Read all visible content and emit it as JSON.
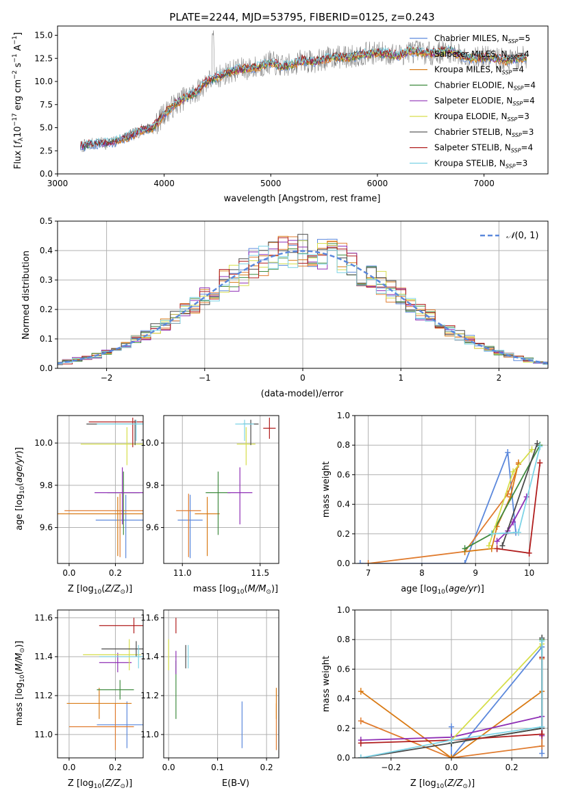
{
  "colors": {
    "series": [
      "#5b88dc",
      "#e07b2e",
      "#d97a14",
      "#3f8a3f",
      "#8e2eb5",
      "#d6de4a",
      "#4a4a4a",
      "#b01c1c",
      "#7cd3e6"
    ],
    "normal_curve": "#5b88dc",
    "grid": "#b0b0b0"
  },
  "chart_data": [
    {
      "id": "spectrum",
      "type": "line",
      "title": "PLATE=2244, MJD=53795, FIBERID=0125, z=0.243",
      "xlabel": "wavelength [Angstrom, rest frame]",
      "ylabel": "Flux [f_λ 10^-17 erg cm^-2 s^-1 A^-1]",
      "xlim": [
        3000,
        7600
      ],
      "ylim": [
        0,
        16
      ],
      "xticks": [
        "3000",
        "4000",
        "5000",
        "6000",
        "7000"
      ],
      "yticks": [
        "0.0",
        "2.5",
        "5.0",
        "7.5",
        "10.0",
        "12.5",
        "15.0"
      ],
      "grid": false,
      "legend_position": "upper-right",
      "series": [
        {
          "name": "Chabrier MILES, N_SSP=5"
        },
        {
          "name": "Salpeter MILES, N_SSP=4"
        },
        {
          "name": "Kroupa MILES, N_SSP=4"
        },
        {
          "name": "Chabrier ELODIE, N_SSP=4"
        },
        {
          "name": "Salpeter ELODIE, N_SSP=4"
        },
        {
          "name": "Kroupa ELODIE, N_SSP=3"
        },
        {
          "name": "Chabrier STELIB, N_SSP=3"
        },
        {
          "name": "Salpeter STELIB, N_SSP=4"
        },
        {
          "name": "Kroupa STELIB, N_SSP=3"
        }
      ],
      "model_continuum": {
        "x": [
          3200,
          3300,
          3400,
          3500,
          3600,
          3700,
          3800,
          3900,
          4000,
          4100,
          4200,
          4300,
          4400,
          4500,
          4600,
          4700,
          4800,
          4900,
          5000,
          5100,
          5200,
          5300,
          5400,
          5500,
          5600,
          5700,
          5800,
          5900,
          6000,
          6100,
          6200,
          6300,
          6400,
          6500,
          6600,
          6700,
          6800,
          6900,
          7000,
          7100,
          7200,
          7300,
          7400
        ],
        "y": [
          2.9,
          3.2,
          3.3,
          3.3,
          3.8,
          4.2,
          4.8,
          5.0,
          6.5,
          7.5,
          8.3,
          8.8,
          10.0,
          10.5,
          11.0,
          11.3,
          11.4,
          11.6,
          12.1,
          11.6,
          11.8,
          12.3,
          12.1,
          12.4,
          12.7,
          12.6,
          12.8,
          13.0,
          13.1,
          13.0,
          12.8,
          13.3,
          13.2,
          13.0,
          13.2,
          13.3,
          12.7,
          12.5,
          12.6,
          12.5,
          12.3,
          12.5,
          12.6
        ]
      }
    },
    {
      "id": "residuals",
      "type": "line",
      "xlabel": "(data-model)/error",
      "ylabel": "Normed distribution",
      "xlim": [
        -2.5,
        2.5
      ],
      "ylim": [
        0,
        0.5
      ],
      "xticks": [
        "−2",
        "−1",
        "0",
        "1",
        "2"
      ],
      "yticks": [
        "0.0",
        "0.1",
        "0.2",
        "0.3",
        "0.4",
        "0.5"
      ],
      "grid": true,
      "legend_position": "upper-right",
      "reference_curve": {
        "name": "N(0, 1)",
        "mean": 0,
        "sigma": 1
      }
    },
    {
      "id": "age_vs_Z",
      "type": "scatter",
      "xlabel": "Z [log10(Z/Z☉)]",
      "ylabel": "age  [log10(age/yr)]",
      "xlim": [
        -0.05,
        0.32
      ],
      "ylim": [
        9.43,
        10.13
      ],
      "xticks": [
        "0.0",
        "0.2"
      ],
      "yticks": [
        "9.6",
        "9.8",
        "10.0"
      ],
      "grid": true,
      "points": [
        {
          "x": 0.245,
          "y": 9.635,
          "xerr": [
            0.13,
            0.13
          ],
          "yerr": [
            0.18,
            0.12
          ]
        },
        {
          "x": 0.22,
          "y": 9.68,
          "xerr": [
            0.24,
            0.24
          ],
          "yerr": [
            0.22,
            0.08
          ]
        },
        {
          "x": 0.21,
          "y": 9.665,
          "xerr": [
            0.33,
            0.33
          ],
          "yerr": [
            0.2,
            0.08
          ]
        },
        {
          "x": 0.235,
          "y": 9.765,
          "xerr": [
            0.07,
            0.07
          ],
          "yerr": [
            0.2,
            0.1
          ]
        },
        {
          "x": 0.23,
          "y": 9.765,
          "xerr": [
            0.12,
            0.12
          ],
          "yerr": [
            0.15,
            0.12
          ]
        },
        {
          "x": 0.25,
          "y": 9.995,
          "xerr": [
            0.2,
            0.2
          ],
          "yerr": [
            0.1,
            0.08
          ]
        },
        {
          "x": 0.285,
          "y": 10.09,
          "xerr": [
            0.21,
            0.21
          ],
          "yerr": [
            0.1,
            0.02
          ]
        },
        {
          "x": 0.275,
          "y": 10.1,
          "xerr": [
            0.19,
            0.19
          ],
          "yerr": [
            0.12,
            0.02
          ]
        },
        {
          "x": 0.29,
          "y": 10.09,
          "xerr": [
            0.17,
            0.17
          ],
          "yerr": [
            0.08,
            0.02
          ]
        }
      ]
    },
    {
      "id": "age_vs_mass",
      "type": "scatter",
      "xlabel": "mass [log10(M/M☉)]",
      "xlim": [
        10.88,
        11.62
      ],
      "ylim": [
        9.43,
        10.13
      ],
      "xticks": [
        "11.0",
        "11.5"
      ],
      "yticks": [
        "9.6",
        "9.8",
        "10.0"
      ],
      "grid": true,
      "points": [
        {
          "x": 11.05,
          "y": 9.635,
          "xerr": [
            0.08,
            0.08
          ],
          "yerr": [
            0.18,
            0.12
          ]
        },
        {
          "x": 11.04,
          "y": 9.68,
          "xerr": [
            0.08,
            0.08
          ],
          "yerr": [
            0.22,
            0.08
          ]
        },
        {
          "x": 11.16,
          "y": 9.665,
          "xerr": [
            0.08,
            0.08
          ],
          "yerr": [
            0.2,
            0.08
          ]
        },
        {
          "x": 11.23,
          "y": 9.765,
          "xerr": [
            0.08,
            0.08
          ],
          "yerr": [
            0.2,
            0.1
          ]
        },
        {
          "x": 11.37,
          "y": 9.765,
          "xerr": [
            0.08,
            0.08
          ],
          "yerr": [
            0.15,
            0.12
          ]
        },
        {
          "x": 11.41,
          "y": 9.995,
          "xerr": [
            0.06,
            0.06
          ],
          "yerr": [
            0.1,
            0.08
          ]
        },
        {
          "x": 11.44,
          "y": 10.09,
          "xerr": [
            0.05,
            0.05
          ],
          "yerr": [
            0.1,
            0.02
          ]
        },
        {
          "x": 11.56,
          "y": 10.07,
          "xerr": [
            0.04,
            0.04
          ],
          "yerr": [
            0.05,
            0.05
          ]
        },
        {
          "x": 11.4,
          "y": 10.09,
          "xerr": [
            0.06,
            0.06
          ],
          "yerr": [
            0.08,
            0.02
          ]
        }
      ]
    },
    {
      "id": "massweight_vs_age",
      "type": "line",
      "xlabel": "age  [log10(age/yr)]",
      "ylabel": "mass weight",
      "xlim": [
        6.75,
        10.35
      ],
      "ylim": [
        0,
        1
      ],
      "xticks": [
        "7",
        "8",
        "9",
        "10"
      ],
      "yticks": [
        "0.0",
        "0.2",
        "0.4",
        "0.6",
        "0.8",
        "1.0"
      ],
      "grid": true,
      "series": [
        {
          "x": [
            6.85,
            8.8,
            9.6,
            9.75
          ],
          "y": [
            0.0,
            0.0,
            0.75,
            0.21
          ]
        },
        {
          "x": [
            7.0,
            8.8,
            9.6,
            9.8
          ],
          "y": [
            0.0,
            0.08,
            0.47,
            0.67
          ]
        },
        {
          "x": [
            8.8,
            9.3,
            9.4,
            9.65,
            9.8
          ],
          "y": [
            0.08,
            0.1,
            0.25,
            0.45,
            0.68
          ]
        },
        {
          "x": [
            8.8,
            9.3,
            10.2
          ],
          "y": [
            0.1,
            0.2,
            0.8
          ]
        },
        {
          "x": [
            9.4,
            9.6,
            9.7,
            9.95
          ],
          "y": [
            0.15,
            0.22,
            0.28,
            0.45
          ]
        },
        {
          "x": [
            9.25,
            9.7,
            10.05
          ],
          "y": [
            0.12,
            0.62,
            0.77
          ]
        },
        {
          "x": [
            9.5,
            10.15
          ],
          "y": [
            0.12,
            0.81
          ]
        },
        {
          "x": [
            9.4,
            10.0,
            10.2
          ],
          "y": [
            0.1,
            0.07,
            0.68
          ]
        },
        {
          "x": [
            9.3,
            9.8,
            10.2
          ],
          "y": [
            0.2,
            0.21,
            0.79
          ]
        }
      ]
    },
    {
      "id": "mass_vs_Z",
      "type": "scatter",
      "xlabel": "Z [log10(Z/Z☉)]",
      "ylabel": "mass [log10(M/M☉)]",
      "xlim": [
        -0.05,
        0.32
      ],
      "ylim": [
        10.88,
        11.64
      ],
      "xticks": [
        "0.0",
        "0.2"
      ],
      "yticks": [
        "11.0",
        "11.2",
        "11.4",
        "11.6"
      ],
      "grid": true,
      "points": [
        {
          "x": 0.25,
          "y": 11.05,
          "xerr": [
            0.13,
            0.08
          ],
          "yerr": [
            0.12,
            0.12
          ]
        },
        {
          "x": 0.2,
          "y": 11.04,
          "xerr": [
            0.2,
            0.08
          ],
          "yerr": [
            0.12,
            0.12
          ]
        },
        {
          "x": 0.13,
          "y": 11.16,
          "xerr": [
            0.14,
            0.14
          ],
          "yerr": [
            0.08,
            0.08
          ]
        },
        {
          "x": 0.22,
          "y": 11.23,
          "xerr": [
            0.1,
            0.06
          ],
          "yerr": [
            0.05,
            0.05
          ]
        },
        {
          "x": 0.21,
          "y": 11.37,
          "xerr": [
            0.08,
            0.06
          ],
          "yerr": [
            0.05,
            0.05
          ]
        },
        {
          "x": 0.26,
          "y": 11.41,
          "xerr": [
            0.2,
            0.05
          ],
          "yerr": [
            0.08,
            0.08
          ]
        },
        {
          "x": 0.29,
          "y": 11.44,
          "xerr": [
            0.15,
            0.05
          ],
          "yerr": [
            0.04,
            0.04
          ]
        },
        {
          "x": 0.28,
          "y": 11.56,
          "xerr": [
            0.15,
            0.05
          ],
          "yerr": [
            0.04,
            0.04
          ]
        },
        {
          "x": 0.3,
          "y": 11.4,
          "xerr": [
            0.17,
            0.02
          ],
          "yerr": [
            0.06,
            0.06
          ]
        }
      ]
    },
    {
      "id": "mass_vs_ebv",
      "type": "scatter",
      "xlabel": "E(B-V)",
      "xlim": [
        -0.01,
        0.225
      ],
      "ylim": [
        10.88,
        11.64
      ],
      "xticks": [
        "0.0",
        "0.1",
        "0.2"
      ],
      "yticks": [
        "11.0",
        "11.2",
        "11.4",
        "11.6"
      ],
      "grid": true,
      "points": [
        {
          "x": 0.15,
          "y": 11.05,
          "xerr": [
            0,
            0
          ],
          "yerr": [
            0.12,
            0.12
          ]
        },
        {
          "x": 0.22,
          "y": 11.04,
          "xerr": [
            0,
            0
          ],
          "yerr": [
            0.12,
            0.12
          ]
        },
        {
          "x": 0.22,
          "y": 11.16,
          "xerr": [
            0,
            0
          ],
          "yerr": [
            0.08,
            0.08
          ]
        },
        {
          "x": 0.015,
          "y": 11.23,
          "xerr": [
            0,
            0
          ],
          "yerr": [
            0.15,
            0.15
          ]
        },
        {
          "x": 0.015,
          "y": 11.37,
          "xerr": [
            0,
            0
          ],
          "yerr": [
            0.06,
            0.06
          ]
        },
        {
          "x": 0.0,
          "y": 11.41,
          "xerr": [
            0,
            0
          ],
          "yerr": [
            0.08,
            0.08
          ]
        },
        {
          "x": 0.035,
          "y": 11.4,
          "xerr": [
            0,
            0
          ],
          "yerr": [
            0.06,
            0.06
          ]
        },
        {
          "x": 0.015,
          "y": 11.56,
          "xerr": [
            0,
            0
          ],
          "yerr": [
            0.04,
            0.04
          ]
        },
        {
          "x": 0.04,
          "y": 11.4,
          "xerr": [
            0,
            0
          ],
          "yerr": [
            0.06,
            0.06
          ]
        }
      ]
    },
    {
      "id": "massweight_vs_Z",
      "type": "line",
      "xlabel": "Z [log10(Z/Z☉)]",
      "ylabel": "mass weight",
      "xlim": [
        -0.32,
        0.32
      ],
      "ylim": [
        0,
        1
      ],
      "xticks": [
        "−0.2",
        "0.0",
        "0.2"
      ],
      "yticks": [
        "0.0",
        "0.2",
        "0.4",
        "0.6",
        "0.8",
        "1.0"
      ],
      "grid": true,
      "series": [
        {
          "x": [
            0.0,
            0.0,
            0.3,
            0.3
          ],
          "y": [
            0.21,
            0.0,
            0.75,
            0.03
          ]
        },
        {
          "x": [
            -0.3,
            0.0,
            0.3,
            0.3
          ],
          "y": [
            0.25,
            0.0,
            0.08,
            0.67
          ]
        },
        {
          "x": [
            -0.3,
            0.0,
            0.3
          ],
          "y": [
            0.45,
            0.0,
            0.45
          ]
        },
        {
          "x": [
            0.0,
            0.3,
            0.3
          ],
          "y": [
            0.1,
            0.2,
            0.8
          ]
        },
        {
          "x": [
            -0.3,
            0.0,
            0.3,
            0.3
          ],
          "y": [
            0.12,
            0.14,
            0.28,
            0.15
          ]
        },
        {
          "x": [
            0.0,
            0.3
          ],
          "y": [
            0.12,
            0.77
          ]
        },
        {
          "x": [
            -0.3,
            0.0,
            0.3,
            0.3
          ],
          "y": [
            0.0,
            0.1,
            0.2,
            0.81
          ]
        },
        {
          "x": [
            -0.3,
            0.0,
            0.3,
            0.3
          ],
          "y": [
            0.1,
            0.12,
            0.16,
            0.68
          ]
        },
        {
          "x": [
            -0.3,
            0.0,
            0.3,
            0.3
          ],
          "y": [
            0.0,
            0.12,
            0.21,
            0.79
          ]
        }
      ]
    }
  ]
}
